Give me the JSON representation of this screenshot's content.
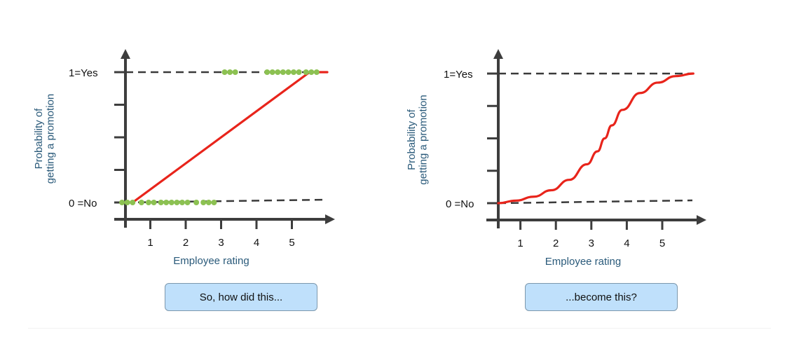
{
  "chart_data": [
    {
      "type": "line",
      "xlabel": "Employee rating",
      "ylabel": [
        "Probability of",
        "getting a promotion"
      ],
      "x_ticks": [
        "1",
        "2",
        "3",
        "4",
        "5"
      ],
      "y_levels": [
        "1=Yes",
        "0 =No"
      ],
      "ylim": [
        0,
        1
      ],
      "xlim": [
        0,
        6
      ],
      "series": [
        {
          "type": "line",
          "points": [
            [
              0.5,
              0
            ],
            [
              5.5,
              1
            ],
            [
              6,
              1
            ]
          ]
        },
        {
          "type": "scatter",
          "points": [
            [
              0.2,
              0
            ],
            [
              0.35,
              0
            ],
            [
              0.5,
              0
            ],
            [
              0.75,
              0
            ],
            [
              0.95,
              0
            ],
            [
              1.1,
              0
            ],
            [
              1.3,
              0
            ],
            [
              1.45,
              0
            ],
            [
              1.6,
              0
            ],
            [
              1.75,
              0
            ],
            [
              1.9,
              0
            ],
            [
              2.05,
              0
            ],
            [
              2.3,
              0
            ],
            [
              2.5,
              0
            ],
            [
              2.65,
              0
            ],
            [
              2.8,
              0
            ],
            [
              3.1,
              1
            ],
            [
              3.25,
              1
            ],
            [
              3.4,
              1
            ],
            [
              4.3,
              1
            ],
            [
              4.45,
              1
            ],
            [
              4.6,
              1
            ],
            [
              4.75,
              1
            ],
            [
              4.9,
              1
            ],
            [
              5.05,
              1
            ],
            [
              5.2,
              1
            ],
            [
              5.4,
              1
            ],
            [
              5.55,
              1
            ],
            [
              5.7,
              1
            ]
          ]
        }
      ],
      "callout": "So, how did this..."
    },
    {
      "type": "line",
      "xlabel": "Employee rating",
      "ylabel": [
        "Probability of",
        "getting a promotion"
      ],
      "x_ticks": [
        "1",
        "2",
        "3",
        "4",
        "5"
      ],
      "y_levels": [
        "1=Yes",
        "0 =No"
      ],
      "ylim": [
        0,
        1
      ],
      "xlim": [
        0,
        6
      ],
      "series": [
        {
          "type": "line",
          "points": [
            [
              0,
              0.0
            ],
            [
              0.5,
              0.02
            ],
            [
              1,
              0.05
            ],
            [
              1.5,
              0.1
            ],
            [
              2,
              0.18
            ],
            [
              2.5,
              0.3
            ],
            [
              2.8,
              0.4
            ],
            [
              3,
              0.5
            ],
            [
              3.2,
              0.6
            ],
            [
              3.5,
              0.72
            ],
            [
              4,
              0.85
            ],
            [
              4.5,
              0.93
            ],
            [
              5,
              0.98
            ],
            [
              5.5,
              1.0
            ]
          ]
        }
      ],
      "callout": "...become this?"
    }
  ],
  "colors": {
    "curve": "#e8241b",
    "dot": "#8cc152",
    "axis": "#3d3d3d",
    "dashed": "#3a3a3a",
    "label": "#2a5a7a",
    "callout_bg": "#bfe0fb"
  }
}
